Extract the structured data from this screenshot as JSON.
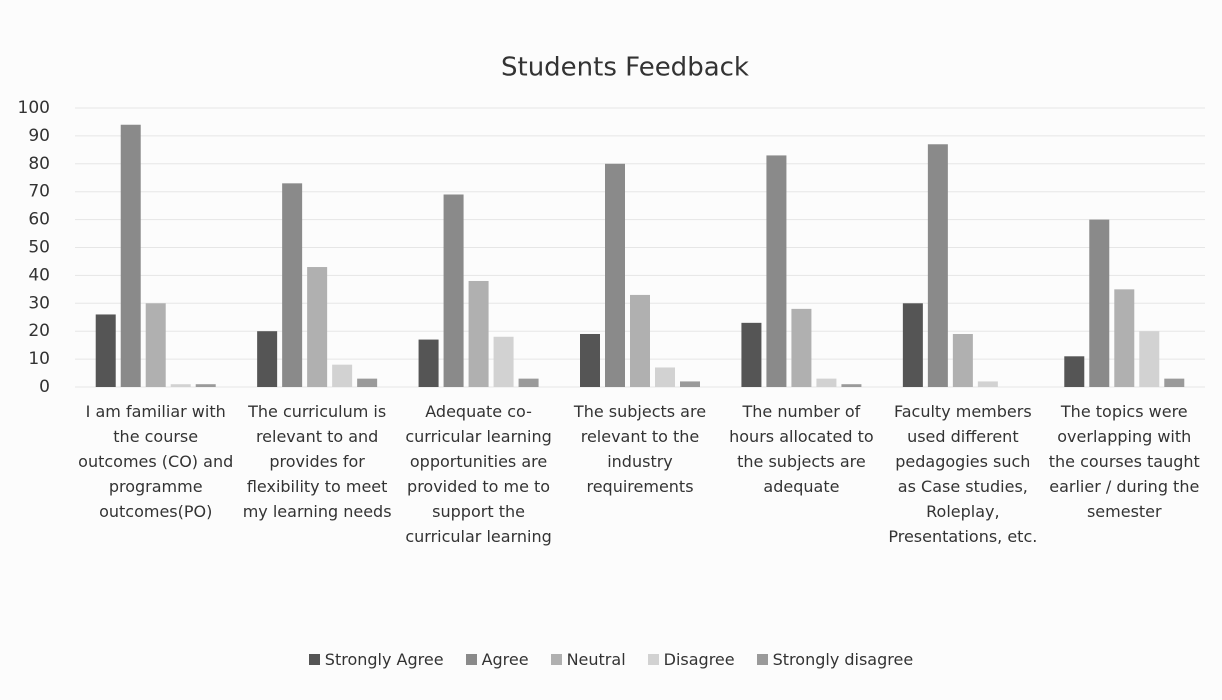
{
  "chart_data": {
    "type": "bar",
    "title": "Students Feedback",
    "categories": [
      "I am familiar with the course outcomes (CO) and programme outcomes(PO)",
      "The curriculum is relevant to and provides for flexibility to meet my learning needs",
      "Adequate co-curricular learning opportunities are provided to me to support the curricular learning",
      "The subjects are relevant to the industry requirements",
      "The number of hours allocated to the subjects are adequate",
      "Faculty members used different pedagogies such as Case studies, Roleplay, Presentations, etc.",
      "The topics were overlapping with the courses taught earlier / during the semester"
    ],
    "series": [
      {
        "name": "Strongly Agree",
        "color": "#555555",
        "values": [
          26,
          20,
          17,
          19,
          23,
          30,
          11
        ]
      },
      {
        "name": "Agree",
        "color": "#8a8a8a",
        "values": [
          94,
          73,
          69,
          80,
          83,
          87,
          60
        ]
      },
      {
        "name": "Neutral",
        "color": "#b0b0b0",
        "values": [
          30,
          43,
          38,
          33,
          28,
          19,
          35
        ]
      },
      {
        "name": "Disagree",
        "color": "#d2d2d2",
        "values": [
          1,
          8,
          18,
          7,
          3,
          2,
          20
        ]
      },
      {
        "name": "Strongly disagree",
        "color": "#9a9a9a",
        "values": [
          1,
          3,
          3,
          2,
          1,
          0,
          3
        ]
      }
    ],
    "ylim": [
      0,
      100
    ],
    "yticks": [
      0,
      10,
      20,
      30,
      40,
      50,
      60,
      70,
      80,
      90,
      100
    ],
    "grid": true,
    "legend": "bottom"
  }
}
